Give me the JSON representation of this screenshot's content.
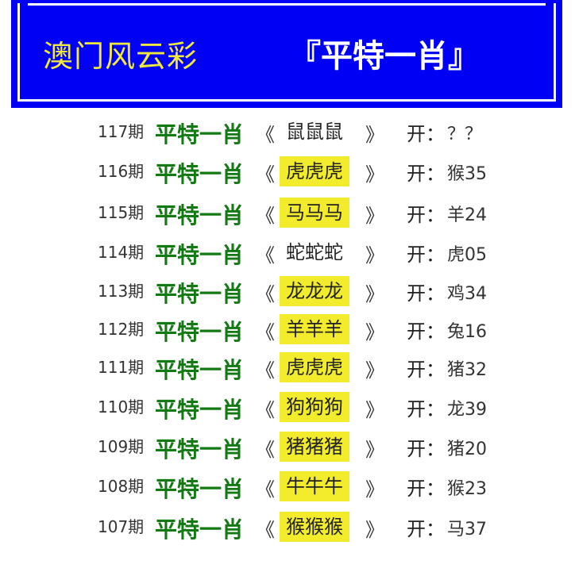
{
  "header": {
    "title": "澳门风云彩",
    "subtitle": "『平特一肖』"
  },
  "colors": {
    "banner": "#0000f5",
    "title": "#f0e93c",
    "label": "#137a13",
    "highlight": "#f2ec2c"
  },
  "rows": [
    {
      "period": "117期",
      "label": "平特一肖",
      "open_quote": "《",
      "zodiac": "鼠鼠鼠",
      "close_quote": "》",
      "open": "开：",
      "result": "？？",
      "highlighted": false
    },
    {
      "period": "116期",
      "label": "平特一肖",
      "open_quote": "《",
      "zodiac": "虎虎虎",
      "close_quote": "》",
      "open": "开：",
      "result": "猴35",
      "highlighted": true
    },
    {
      "period": "115期",
      "label": "平特一肖",
      "open_quote": "《",
      "zodiac": "马马马",
      "close_quote": "》",
      "open": "开：",
      "result": "羊24",
      "highlighted": true
    },
    {
      "period": "114期",
      "label": "平特一肖",
      "open_quote": "《",
      "zodiac": "蛇蛇蛇",
      "close_quote": "》",
      "open": "开：",
      "result": "虎05",
      "highlighted": false
    },
    {
      "period": "113期",
      "label": "平特一肖",
      "open_quote": "《",
      "zodiac": "龙龙龙",
      "close_quote": "》",
      "open": "开：",
      "result": "鸡34",
      "highlighted": true
    },
    {
      "period": "112期",
      "label": "平特一肖",
      "open_quote": "《",
      "zodiac": "羊羊羊",
      "close_quote": "》",
      "open": "开：",
      "result": "兔16",
      "highlighted": true
    },
    {
      "period": "111期",
      "label": "平特一肖",
      "open_quote": "《",
      "zodiac": "虎虎虎",
      "close_quote": "》",
      "open": "开：",
      "result": "猪32",
      "highlighted": true
    },
    {
      "period": "110期",
      "label": "平特一肖",
      "open_quote": "《",
      "zodiac": "狗狗狗",
      "close_quote": "》",
      "open": "开：",
      "result": "龙39",
      "highlighted": true
    },
    {
      "period": "109期",
      "label": "平特一肖",
      "open_quote": "《",
      "zodiac": "猪猪猪",
      "close_quote": "》",
      "open": "开：",
      "result": "猪20",
      "highlighted": true
    },
    {
      "period": "108期",
      "label": "平特一肖",
      "open_quote": "《",
      "zodiac": "牛牛牛",
      "close_quote": "》",
      "open": "开：",
      "result": "猴23",
      "highlighted": true
    },
    {
      "period": "107期",
      "label": "平特一肖",
      "open_quote": "《",
      "zodiac": "猴猴猴",
      "close_quote": "》",
      "open": "开：",
      "result": "马37",
      "highlighted": true
    }
  ]
}
